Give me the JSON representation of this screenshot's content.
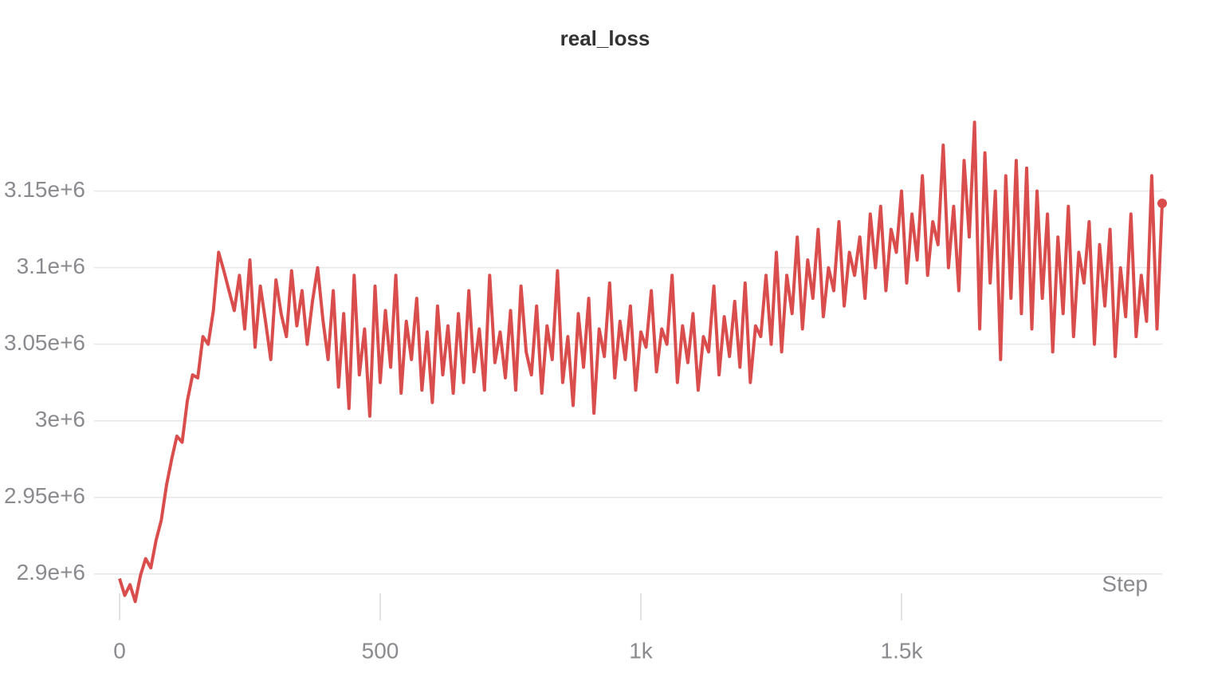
{
  "chart_data": {
    "type": "line",
    "title": "real_loss",
    "x_label": "Step",
    "color": "#da4d4d",
    "grid": true,
    "xlim": [
      0,
      2000
    ],
    "xticks": [
      0,
      500,
      {
        "value": 1000,
        "label": "1k"
      },
      {
        "value": 1500,
        "label": "1.5k"
      }
    ],
    "ylim": [
      2878000,
      3205000
    ],
    "yticks": [
      {
        "value": 2900000,
        "label": "2.9e+6"
      },
      {
        "value": 2950000,
        "label": "2.95e+6"
      },
      {
        "value": 3000000,
        "label": "3e+6"
      },
      {
        "value": 3050000,
        "label": "3.05e+6"
      },
      {
        "value": 3100000,
        "label": "3.1e+6"
      },
      {
        "value": 3150000,
        "label": "3.15e+6"
      }
    ],
    "x": [
      0,
      10,
      20,
      30,
      40,
      50,
      60,
      70,
      80,
      90,
      100,
      110,
      120,
      130,
      140,
      150,
      160,
      170,
      180,
      190,
      200,
      210,
      220,
      230,
      240,
      250,
      260,
      270,
      280,
      290,
      300,
      310,
      320,
      330,
      340,
      350,
      360,
      370,
      380,
      390,
      400,
      410,
      420,
      430,
      440,
      450,
      460,
      470,
      480,
      490,
      500,
      510,
      520,
      530,
      540,
      550,
      560,
      570,
      580,
      590,
      600,
      610,
      620,
      630,
      640,
      650,
      660,
      670,
      680,
      690,
      700,
      710,
      720,
      730,
      740,
      750,
      760,
      770,
      780,
      790,
      800,
      810,
      820,
      830,
      840,
      850,
      860,
      870,
      880,
      890,
      900,
      910,
      920,
      930,
      940,
      950,
      960,
      970,
      980,
      990,
      1000,
      1010,
      1020,
      1030,
      1040,
      1050,
      1060,
      1070,
      1080,
      1090,
      1100,
      1110,
      1120,
      1130,
      1140,
      1150,
      1160,
      1170,
      1180,
      1190,
      1200,
      1210,
      1220,
      1230,
      1240,
      1250,
      1260,
      1270,
      1280,
      1290,
      1300,
      1310,
      1320,
      1330,
      1340,
      1350,
      1360,
      1370,
      1380,
      1390,
      1400,
      1410,
      1420,
      1430,
      1440,
      1450,
      1460,
      1470,
      1480,
      1490,
      1500,
      1510,
      1520,
      1530,
      1540,
      1550,
      1560,
      1570,
      1580,
      1590,
      1600,
      1610,
      1620,
      1630,
      1640,
      1650,
      1660,
      1670,
      1680,
      1690,
      1700,
      1710,
      1720,
      1730,
      1740,
      1750,
      1760,
      1770,
      1780,
      1790,
      1800,
      1810,
      1820,
      1830,
      1840,
      1850,
      1860,
      1870,
      1880,
      1890,
      1900,
      1910,
      1920,
      1930,
      1940,
      1950,
      1960,
      1970,
      1980,
      1990,
      2000
    ],
    "values": [
      2897000,
      2886000,
      2893000,
      2882000,
      2899000,
      2910000,
      2904000,
      2922000,
      2935000,
      2958000,
      2975000,
      2990000,
      2986000,
      3013000,
      3030000,
      3028000,
      3055000,
      3050000,
      3072000,
      3110000,
      3098000,
      3085000,
      3072000,
      3095000,
      3060000,
      3105000,
      3048000,
      3088000,
      3065000,
      3040000,
      3092000,
      3070000,
      3055000,
      3098000,
      3062000,
      3085000,
      3050000,
      3078000,
      3100000,
      3066000,
      3040000,
      3085000,
      3022000,
      3070000,
      3008000,
      3095000,
      3030000,
      3060000,
      3003000,
      3088000,
      3025000,
      3072000,
      3035000,
      3095000,
      3018000,
      3065000,
      3040000,
      3080000,
      3020000,
      3058000,
      3012000,
      3075000,
      3030000,
      3062000,
      3018000,
      3070000,
      3025000,
      3085000,
      3032000,
      3060000,
      3020000,
      3095000,
      3038000,
      3058000,
      3028000,
      3072000,
      3020000,
      3088000,
      3045000,
      3030000,
      3075000,
      3018000,
      3062000,
      3040000,
      3098000,
      3025000,
      3055000,
      3010000,
      3070000,
      3035000,
      3080000,
      3005000,
      3060000,
      3042000,
      3090000,
      3028000,
      3065000,
      3040000,
      3075000,
      3020000,
      3058000,
      3048000,
      3085000,
      3032000,
      3060000,
      3050000,
      3095000,
      3025000,
      3062000,
      3038000,
      3070000,
      3020000,
      3055000,
      3045000,
      3088000,
      3030000,
      3068000,
      3042000,
      3078000,
      3035000,
      3090000,
      3025000,
      3062000,
      3055000,
      3095000,
      3050000,
      3110000,
      3045000,
      3095000,
      3070000,
      3120000,
      3060000,
      3105000,
      3080000,
      3125000,
      3068000,
      3100000,
      3085000,
      3130000,
      3075000,
      3110000,
      3095000,
      3120000,
      3080000,
      3135000,
      3100000,
      3140000,
      3085000,
      3125000,
      3110000,
      3150000,
      3090000,
      3135000,
      3105000,
      3160000,
      3095000,
      3130000,
      3115000,
      3180000,
      3100000,
      3140000,
      3085000,
      3170000,
      3120000,
      3195000,
      3060000,
      3175000,
      3090000,
      3150000,
      3040000,
      3160000,
      3080000,
      3170000,
      3070000,
      3165000,
      3060000,
      3150000,
      3080000,
      3135000,
      3045000,
      3120000,
      3070000,
      3140000,
      3055000,
      3110000,
      3090000,
      3130000,
      3050000,
      3115000,
      3075000,
      3125000,
      3042000,
      3100000,
      3068000,
      3135000,
      3055000,
      3095000,
      3065000,
      3160000,
      3060000,
      3142000
    ]
  }
}
